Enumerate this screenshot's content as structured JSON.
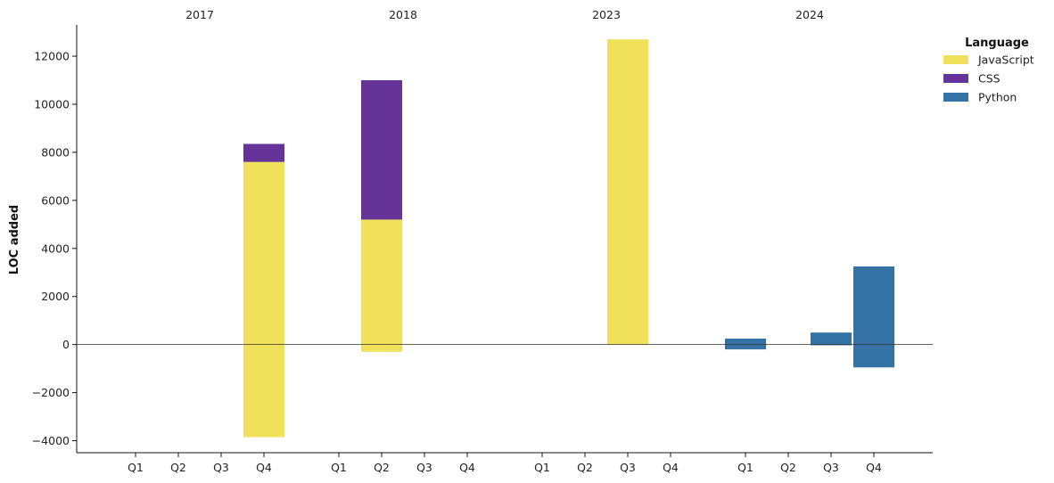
{
  "chart_data": {
    "type": "bar",
    "stacked": true,
    "ylabel": "LOC added",
    "ylim": [
      -4500,
      13300
    ],
    "yticks": [
      -4000,
      -2000,
      0,
      2000,
      4000,
      6000,
      8000,
      10000,
      12000
    ],
    "yticks_labels": [
      "−4000",
      "−2000",
      "0",
      "2000",
      "4000",
      "6000",
      "8000",
      "10000",
      "12000"
    ],
    "legend": {
      "title": "Language",
      "placement": "top-right, outside plot",
      "entries": [
        "JavaScript",
        "CSS",
        "Python"
      ]
    },
    "colors": {
      "JavaScript": "#f0e05a",
      "CSS": "#663399",
      "Python": "#3572a5",
      "zero_line": "#333333"
    },
    "groups": [
      {
        "year": "2017",
        "quarters": [
          "Q1",
          "Q2",
          "Q3",
          "Q4"
        ]
      },
      {
        "year": "2018",
        "quarters": [
          "Q1",
          "Q2",
          "Q3",
          "Q4"
        ]
      },
      {
        "year": "2023",
        "quarters": [
          "Q1",
          "Q2",
          "Q3",
          "Q4"
        ]
      },
      {
        "year": "2024",
        "quarters": [
          "Q1",
          "Q2",
          "Q3",
          "Q4"
        ]
      }
    ],
    "series": [
      {
        "name": "JavaScript",
        "positive": [
          0,
          0,
          0,
          7600,
          0,
          5200,
          0,
          0,
          0,
          0,
          12700,
          0,
          0,
          0,
          0,
          0
        ],
        "negative": [
          0,
          0,
          0,
          -3850,
          0,
          -300,
          0,
          0,
          0,
          0,
          0,
          0,
          0,
          0,
          0,
          0
        ]
      },
      {
        "name": "CSS",
        "positive": [
          0,
          0,
          0,
          750,
          0,
          5800,
          0,
          0,
          0,
          0,
          0,
          0,
          0,
          0,
          0,
          0
        ],
        "negative": [
          0,
          0,
          0,
          0,
          0,
          0,
          0,
          0,
          0,
          0,
          0,
          0,
          0,
          0,
          0,
          0
        ]
      },
      {
        "name": "Python",
        "positive": [
          0,
          0,
          0,
          0,
          0,
          0,
          0,
          0,
          0,
          0,
          0,
          0,
          250,
          0,
          500,
          3250
        ],
        "negative": [
          0,
          0,
          0,
          0,
          0,
          0,
          0,
          0,
          0,
          0,
          0,
          0,
          -200,
          0,
          -30,
          -950
        ]
      }
    ]
  }
}
